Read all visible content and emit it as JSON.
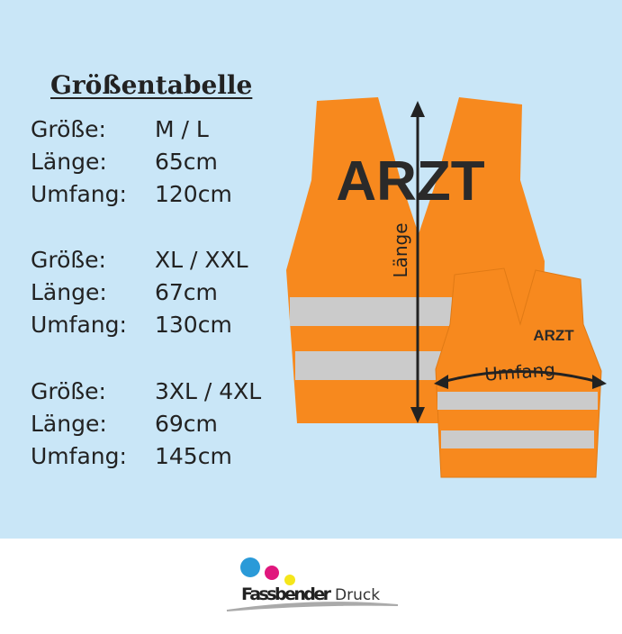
{
  "title": "Größentabelle",
  "groups": [
    {
      "rows": [
        {
          "label": "Größe:",
          "value": "M / L"
        },
        {
          "label": "Länge:",
          "value": "65cm"
        },
        {
          "label": "Umfang:",
          "value": "120cm"
        }
      ]
    },
    {
      "rows": [
        {
          "label": "Größe:",
          "value": "XL / XXL"
        },
        {
          "label": "Länge:",
          "value": "67cm"
        },
        {
          "label": "Umfang:",
          "value": "130cm"
        }
      ]
    },
    {
      "rows": [
        {
          "label": "Größe:",
          "value": "3XL / 4XL"
        },
        {
          "label": "Länge:",
          "value": "69cm"
        },
        {
          "label": "Umfang:",
          "value": "145cm"
        }
      ]
    }
  ],
  "vest": {
    "print_large": "ARZT",
    "print_small": "ARZT",
    "length_label": "Länge",
    "circumference_label": "Umfang",
    "color": "#f7891e",
    "reflective": "#c8c8c8"
  },
  "logo": {
    "text_bold": "Fassbender",
    "text_light": "Druck",
    "dot_colors": [
      "#2a9ad8",
      "#e0177d",
      "#f5e61a"
    ]
  },
  "background": "#c9e6f7"
}
